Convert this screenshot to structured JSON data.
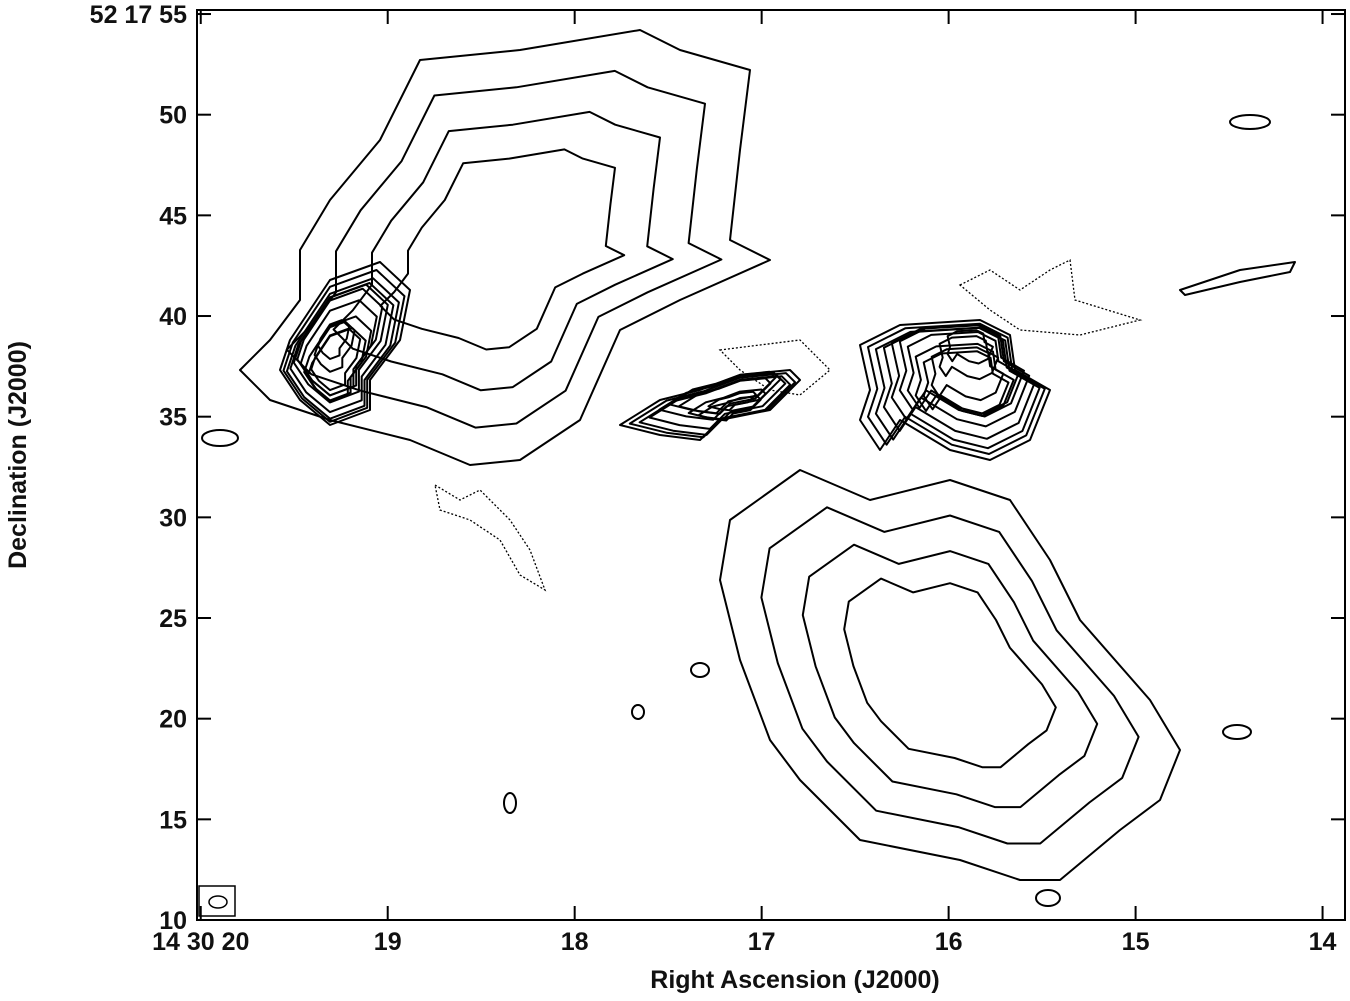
{
  "chart_data": {
    "type": "contour",
    "xlabel": "Right Ascension (J2000)",
    "ylabel": "Declination (J2000)",
    "xlim": [
      20.02,
      13.88
    ],
    "ylim": [
      10,
      55.2
    ],
    "xticks": [
      {
        "value": 20,
        "label": "14 30 20"
      },
      19,
      18,
      17,
      16,
      15,
      14
    ],
    "yticks": [
      {
        "value": 55,
        "label": "52 17 55"
      },
      50,
      45,
      40,
      35,
      30,
      25,
      20,
      15,
      10
    ]
  }
}
